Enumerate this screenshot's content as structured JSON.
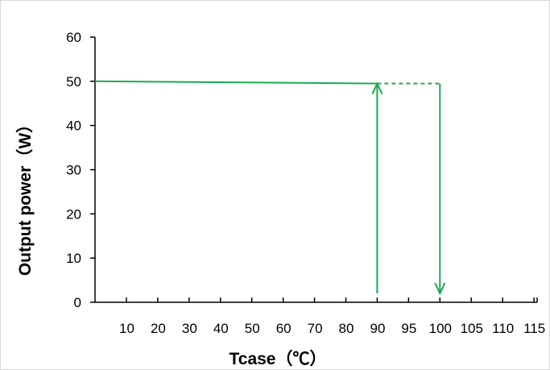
{
  "chart_data": {
    "type": "line",
    "title": "",
    "xlabel": "Tcase（℃）",
    "ylabel": "Output power（W）",
    "x_tick_labels": [
      "10",
      "20",
      "30",
      "40",
      "50",
      "60",
      "70",
      "80",
      "90",
      "95",
      "100",
      "105",
      "110",
      "115"
    ],
    "y_ticks": [
      0,
      10,
      20,
      30,
      40,
      50,
      60
    ],
    "ylim": [
      0,
      60
    ],
    "grid": false,
    "series": [
      {
        "style": "solid",
        "color": "#1aaa55",
        "x": [
          0,
          90
        ],
        "y": [
          50,
          49.5
        ]
      },
      {
        "style": "dashed",
        "color": "#1aaa55",
        "x": [
          90,
          100
        ],
        "y": [
          49.5,
          49.5
        ]
      }
    ],
    "arrows": [
      {
        "x": 90,
        "from_y": 2,
        "to_y": 49.5,
        "direction": "up",
        "color": "#1aaa55"
      },
      {
        "x": 100,
        "from_y": 49.5,
        "to_y": 2,
        "direction": "down",
        "color": "#1aaa55"
      }
    ]
  }
}
